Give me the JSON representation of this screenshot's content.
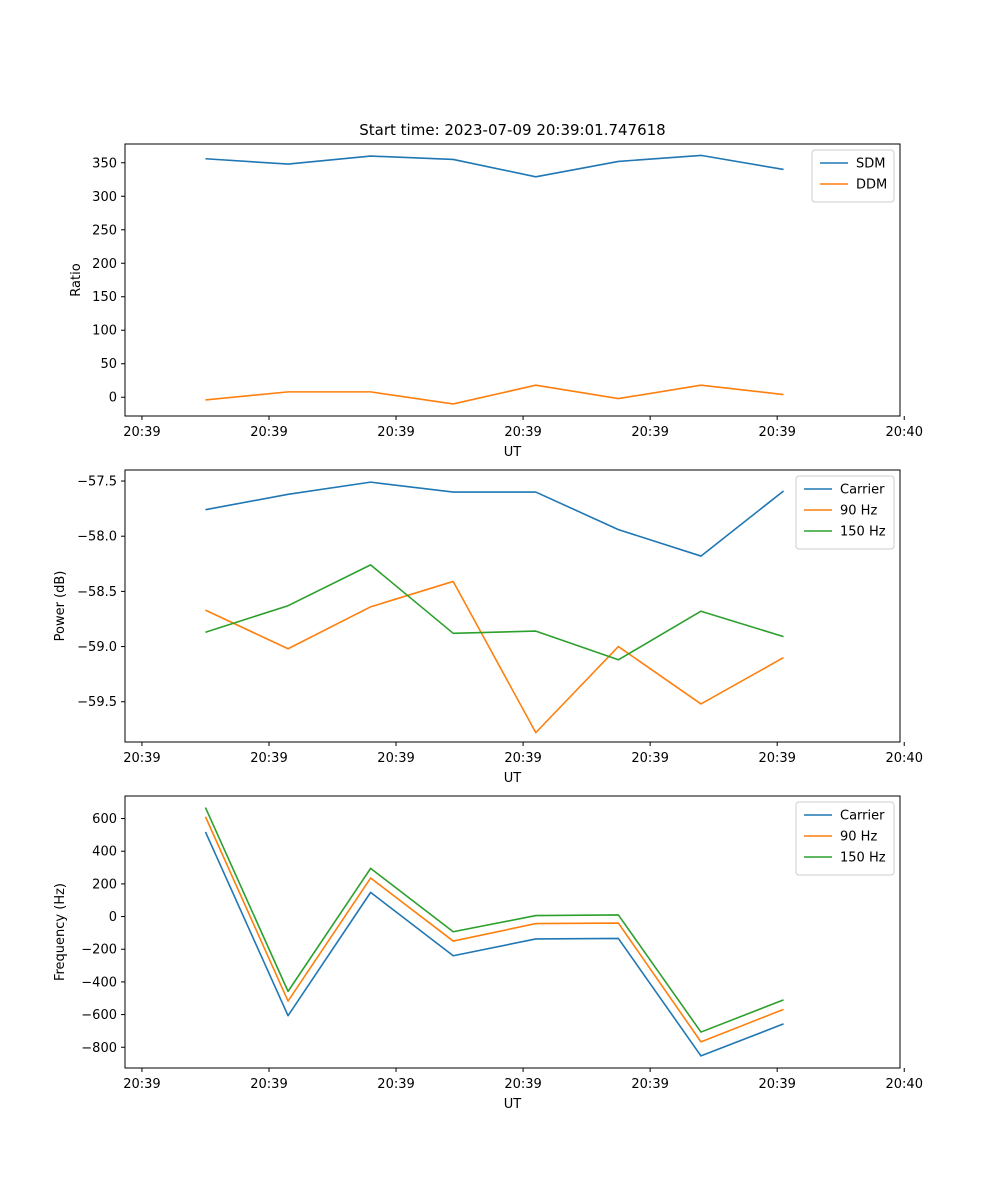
{
  "figure_title": "Start time: 2023-07-09 20:39:01.747618",
  "colors": {
    "c1": "#1f77b4",
    "c2": "#ff7f0e",
    "c3": "#2ca02c"
  },
  "chart_data": [
    {
      "type": "line",
      "title": "Start time: 2023-07-09 20:39:01.747618",
      "xlabel": "UT",
      "ylabel": "Ratio",
      "xlim": [
        -1,
        17.3
      ],
      "ylim": [
        -28,
        378
      ],
      "x_ticks": [
        -0.6,
        2.4,
        5.4,
        8.4,
        11.4,
        14.4,
        17.4
      ],
      "x_tick_labels": [
        "20:39",
        "20:39",
        "20:39",
        "20:39",
        "20:39",
        "20:39",
        "20:40"
      ],
      "y_ticks": [
        0,
        50,
        100,
        150,
        200,
        250,
        300,
        350
      ],
      "y_tick_labels": [
        "0",
        "50",
        "100",
        "150",
        "200",
        "250",
        "300",
        "350"
      ],
      "legend_position": "upper right",
      "x": [
        0.9,
        2.85,
        4.8,
        6.75,
        8.7,
        10.65,
        12.6,
        14.55
      ],
      "series": [
        {
          "name": "SDM",
          "color_key": "c1",
          "values": [
            356,
            348,
            360,
            355,
            329,
            352,
            361,
            340
          ]
        },
        {
          "name": "DDM",
          "color_key": "c2",
          "values": [
            -4,
            8,
            8,
            -10,
            18,
            -2,
            18,
            4
          ]
        }
      ]
    },
    {
      "type": "line",
      "title": "",
      "xlabel": "UT",
      "ylabel": "Power (dB)",
      "xlim": [
        -1,
        17.3
      ],
      "ylim": [
        -59.865,
        -57.4
      ],
      "x_ticks": [
        -0.6,
        2.4,
        5.4,
        8.4,
        11.4,
        14.4,
        17.4
      ],
      "x_tick_labels": [
        "20:39",
        "20:39",
        "20:39",
        "20:39",
        "20:39",
        "20:39",
        "20:40"
      ],
      "y_ticks": [
        -57.5,
        -58.0,
        -58.5,
        -59.0,
        -59.5
      ],
      "y_tick_labels": [
        "−57.5",
        "−58.0",
        "−58.5",
        "−59.0",
        "−59.5"
      ],
      "legend_position": "upper right",
      "x": [
        0.9,
        2.85,
        4.8,
        6.75,
        8.7,
        10.65,
        12.6,
        14.55
      ],
      "series": [
        {
          "name": "Carrier",
          "color_key": "c1",
          "values": [
            -57.76,
            -57.62,
            -57.51,
            -57.6,
            -57.6,
            -57.94,
            -58.18,
            -57.59
          ]
        },
        {
          "name": "90 Hz",
          "color_key": "c2",
          "values": [
            -58.67,
            -59.02,
            -58.64,
            -58.41,
            -59.78,
            -59.0,
            -59.52,
            -59.1
          ]
        },
        {
          "name": "150 Hz",
          "color_key": "c3",
          "values": [
            -58.87,
            -58.63,
            -58.26,
            -58.88,
            -58.86,
            -59.12,
            -58.68,
            -58.91
          ]
        }
      ]
    },
    {
      "type": "line",
      "title": "",
      "xlabel": "UT",
      "ylabel": "Frequency (Hz)",
      "xlim": [
        -1,
        17.3
      ],
      "ylim": [
        -927,
        738
      ],
      "x_ticks": [
        -0.6,
        2.4,
        5.4,
        8.4,
        11.4,
        14.4,
        17.4
      ],
      "x_tick_labels": [
        "20:39",
        "20:39",
        "20:39",
        "20:39",
        "20:39",
        "20:39",
        "20:40"
      ],
      "y_ticks": [
        600,
        400,
        200,
        0,
        -200,
        -400,
        -600,
        -800
      ],
      "y_tick_labels": [
        "600",
        "400",
        "200",
        "0",
        "−200",
        "−400",
        "−600",
        "−800"
      ],
      "legend_position": "upper right",
      "x": [
        0.9,
        2.85,
        4.8,
        6.75,
        8.7,
        10.65,
        12.6,
        14.55
      ],
      "series": [
        {
          "name": "Carrier",
          "color_key": "c1",
          "values": [
            518,
            -607,
            148,
            -240,
            -137,
            -134,
            -853,
            -657
          ]
        },
        {
          "name": "90 Hz",
          "color_key": "c2",
          "values": [
            611,
            -517,
            236,
            -150,
            -43,
            -40,
            -767,
            -568
          ]
        },
        {
          "name": "150 Hz",
          "color_key": "c3",
          "values": [
            667,
            -458,
            295,
            -93,
            6,
            10,
            -707,
            -510
          ]
        }
      ]
    }
  ]
}
